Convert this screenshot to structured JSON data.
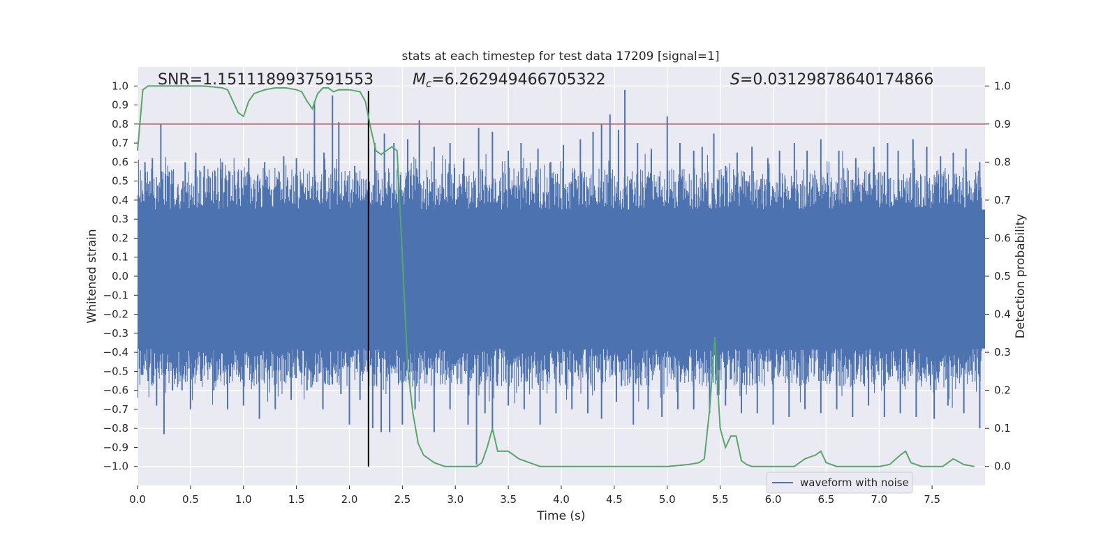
{
  "chart_data": {
    "type": "line",
    "title": "stats at each timestep for test data 17209 [signal=1]",
    "xlabel": "Time (s)",
    "ylabel_left": "Whitened strain",
    "ylabel_right": "Detection probability",
    "xlim": [
      0.0,
      8.0
    ],
    "ylim_left": [
      -1.1,
      1.1
    ],
    "ylim_right": [
      -0.05,
      1.05
    ],
    "x_ticks": [
      "0.0",
      "0.5",
      "1.0",
      "1.5",
      "2.0",
      "2.5",
      "3.0",
      "3.5",
      "4.0",
      "4.5",
      "5.0",
      "5.5",
      "6.0",
      "6.5",
      "7.0",
      "7.5"
    ],
    "x_tick_values": [
      0.0,
      0.5,
      1.0,
      1.5,
      2.0,
      2.5,
      3.0,
      3.5,
      4.0,
      4.5,
      5.0,
      5.5,
      6.0,
      6.5,
      7.0,
      7.5
    ],
    "y_left_ticks": [
      "1.0",
      "0.9",
      "0.8",
      "0.7",
      "0.6",
      "0.5",
      "0.4",
      "0.3",
      "0.2",
      "0.1",
      "0.0",
      "−0.1",
      "−0.2",
      "−0.3",
      "−0.4",
      "−0.5",
      "−0.6",
      "−0.7",
      "−0.8",
      "−0.9",
      "−1.0"
    ],
    "y_left_tick_values": [
      1.0,
      0.9,
      0.8,
      0.7,
      0.6,
      0.5,
      0.4,
      0.3,
      0.2,
      0.1,
      0.0,
      -0.1,
      -0.2,
      -0.3,
      -0.4,
      -0.5,
      -0.6,
      -0.7,
      -0.8,
      -0.9,
      -1.0
    ],
    "y_right_ticks": [
      "1.0",
      "0.9",
      "0.8",
      "0.7",
      "0.6",
      "0.5",
      "0.4",
      "0.3",
      "0.2",
      "0.1",
      "0.0"
    ],
    "y_right_tick_values": [
      1.0,
      0.9,
      0.8,
      0.7,
      0.6,
      0.5,
      0.4,
      0.3,
      0.2,
      0.1,
      0.0
    ],
    "grid": true,
    "annotations": {
      "snr": "SNR=1.1511189937591553",
      "mc_symbol": "M",
      "mc_subscript": "c",
      "mc_value": "=6.262949466705322",
      "s_symbol": "S",
      "s_value": "=0.03129878640174866"
    },
    "threshold": {
      "value": 0.9,
      "axis": "right",
      "color": "#c44e52"
    },
    "signal_marker_time": 2.18,
    "legend": {
      "label": "waveform with noise",
      "placement": "lower-right"
    },
    "waveform_envelope": {
      "name": "waveform with noise",
      "color": "#4c72b0",
      "core_upper": 0.35,
      "core_lower": -0.38,
      "peaks_upper": [
        [
          0.07,
          0.6
        ],
        [
          0.14,
          0.62
        ],
        [
          0.22,
          0.8
        ],
        [
          0.3,
          0.55
        ],
        [
          0.45,
          0.6
        ],
        [
          0.55,
          0.65
        ],
        [
          0.63,
          0.58
        ],
        [
          0.8,
          0.6
        ],
        [
          0.95,
          0.55
        ],
        [
          1.05,
          0.62
        ],
        [
          1.2,
          0.6
        ],
        [
          1.38,
          0.63
        ],
        [
          1.5,
          0.62
        ],
        [
          1.67,
          0.92
        ],
        [
          1.76,
          0.65
        ],
        [
          1.84,
          0.95
        ],
        [
          1.9,
          0.81
        ],
        [
          2.05,
          0.58
        ],
        [
          2.24,
          0.7
        ],
        [
          2.33,
          0.75
        ],
        [
          2.42,
          0.7
        ],
        [
          2.55,
          0.72
        ],
        [
          2.66,
          0.82
        ],
        [
          2.8,
          0.68
        ],
        [
          2.95,
          0.7
        ],
        [
          3.08,
          0.62
        ],
        [
          3.22,
          0.78
        ],
        [
          3.35,
          0.76
        ],
        [
          3.5,
          0.66
        ],
        [
          3.62,
          0.7
        ],
        [
          3.78,
          0.67
        ],
        [
          3.9,
          0.6
        ],
        [
          4.02,
          0.69
        ],
        [
          4.18,
          0.72
        ],
        [
          4.3,
          0.76
        ],
        [
          4.38,
          0.8
        ],
        [
          4.46,
          0.85
        ],
        [
          4.54,
          0.77
        ],
        [
          4.6,
          0.98
        ],
        [
          4.72,
          0.7
        ],
        [
          4.85,
          0.67
        ],
        [
          5.0,
          0.84
        ],
        [
          5.12,
          0.7
        ],
        [
          5.25,
          0.66
        ],
        [
          5.33,
          0.68
        ],
        [
          5.44,
          0.75
        ],
        [
          5.55,
          0.58
        ],
        [
          5.66,
          0.65
        ],
        [
          5.8,
          0.68
        ],
        [
          5.95,
          0.62
        ],
        [
          6.06,
          0.66
        ],
        [
          6.2,
          0.7
        ],
        [
          6.32,
          0.66
        ],
        [
          6.45,
          0.72
        ],
        [
          6.62,
          0.66
        ],
        [
          6.78,
          0.62
        ],
        [
          6.95,
          0.68
        ],
        [
          7.08,
          0.7
        ],
        [
          7.18,
          0.66
        ],
        [
          7.32,
          0.72
        ],
        [
          7.45,
          0.68
        ],
        [
          7.58,
          0.63
        ],
        [
          7.7,
          0.65
        ],
        [
          7.82,
          0.67
        ],
        [
          7.95,
          0.6
        ]
      ],
      "peaks_lower": [
        [
          0.1,
          -0.55
        ],
        [
          0.18,
          -0.68
        ],
        [
          0.25,
          -0.83
        ],
        [
          0.33,
          -0.6
        ],
        [
          0.42,
          -0.6
        ],
        [
          0.5,
          -0.7
        ],
        [
          0.6,
          -0.55
        ],
        [
          0.72,
          -0.6
        ],
        [
          0.85,
          -0.7
        ],
        [
          1.0,
          -0.68
        ],
        [
          1.15,
          -0.75
        ],
        [
          1.3,
          -0.7
        ],
        [
          1.45,
          -0.65
        ],
        [
          1.6,
          -0.6
        ],
        [
          1.75,
          -0.7
        ],
        [
          1.92,
          -0.62
        ],
        [
          2.0,
          -0.78
        ],
        [
          2.1,
          -0.65
        ],
        [
          2.22,
          -0.8
        ],
        [
          2.3,
          -0.82
        ],
        [
          2.38,
          -0.82
        ],
        [
          2.5,
          -0.78
        ],
        [
          2.62,
          -0.7
        ],
        [
          2.8,
          -0.82
        ],
        [
          2.95,
          -0.7
        ],
        [
          3.12,
          -0.78
        ],
        [
          3.2,
          -0.99
        ],
        [
          3.28,
          -0.72
        ],
        [
          3.35,
          -0.82
        ],
        [
          3.5,
          -0.68
        ],
        [
          3.65,
          -0.7
        ],
        [
          3.8,
          -0.78
        ],
        [
          3.95,
          -0.72
        ],
        [
          4.1,
          -0.7
        ],
        [
          4.25,
          -0.72
        ],
        [
          4.38,
          -0.75
        ],
        [
          4.52,
          -0.66
        ],
        [
          4.68,
          -0.78
        ],
        [
          4.82,
          -0.7
        ],
        [
          4.95,
          -0.74
        ],
        [
          5.1,
          -0.7
        ],
        [
          5.25,
          -0.7
        ],
        [
          5.4,
          -0.72
        ],
        [
          5.55,
          -0.68
        ],
        [
          5.7,
          -0.72
        ],
        [
          5.85,
          -0.72
        ],
        [
          6.0,
          -0.78
        ],
        [
          6.15,
          -0.74
        ],
        [
          6.3,
          -0.7
        ],
        [
          6.45,
          -0.72
        ],
        [
          6.6,
          -0.7
        ],
        [
          6.75,
          -0.74
        ],
        [
          6.9,
          -0.68
        ],
        [
          7.05,
          -0.74
        ],
        [
          7.2,
          -0.72
        ],
        [
          7.35,
          -0.74
        ],
        [
          7.52,
          -0.75
        ],
        [
          7.65,
          -0.68
        ],
        [
          7.8,
          -0.72
        ],
        [
          7.95,
          -0.8
        ]
      ]
    },
    "series": [
      {
        "name": "Detection probability",
        "axis": "right",
        "color": "#55a868",
        "x": [
          0.0,
          0.05,
          0.1,
          0.15,
          0.2,
          0.3,
          0.4,
          0.5,
          0.6,
          0.7,
          0.8,
          0.85,
          0.9,
          0.95,
          1.0,
          1.05,
          1.1,
          1.2,
          1.3,
          1.4,
          1.5,
          1.55,
          1.6,
          1.65,
          1.7,
          1.75,
          1.8,
          1.85,
          1.9,
          1.95,
          2.0,
          2.1,
          2.15,
          2.2,
          2.25,
          2.3,
          2.35,
          2.4,
          2.45,
          2.5,
          2.55,
          2.6,
          2.65,
          2.7,
          2.8,
          2.9,
          3.0,
          3.1,
          3.15,
          3.2,
          3.25,
          3.3,
          3.35,
          3.4,
          3.5,
          3.6,
          3.7,
          3.8,
          4.0,
          4.2,
          4.4,
          4.5,
          4.6,
          4.8,
          5.0,
          5.2,
          5.3,
          5.35,
          5.4,
          5.45,
          5.5,
          5.55,
          5.6,
          5.65,
          5.7,
          5.75,
          5.8,
          5.9,
          6.0,
          6.1,
          6.2,
          6.3,
          6.4,
          6.45,
          6.5,
          6.6,
          6.8,
          7.0,
          7.1,
          7.2,
          7.25,
          7.3,
          7.4,
          7.5,
          7.6,
          7.65,
          7.7,
          7.8,
          7.9
        ],
        "values": [
          0.83,
          0.99,
          1.0,
          1.0,
          1.0,
          1.0,
          1.0,
          1.0,
          1.0,
          0.998,
          0.995,
          0.99,
          0.96,
          0.93,
          0.92,
          0.96,
          0.98,
          0.99,
          0.995,
          0.995,
          0.99,
          0.985,
          0.96,
          0.94,
          0.98,
          0.995,
          0.995,
          0.985,
          0.99,
          0.99,
          0.99,
          0.985,
          0.96,
          0.89,
          0.83,
          0.82,
          0.83,
          0.84,
          0.83,
          0.55,
          0.26,
          0.14,
          0.06,
          0.03,
          0.01,
          0.0,
          0.0,
          0.0,
          0.0,
          0.0,
          0.01,
          0.05,
          0.1,
          0.04,
          0.04,
          0.02,
          0.01,
          0.0,
          0.0,
          0.0,
          0.0,
          0.0,
          0.0,
          0.0,
          0.0,
          0.005,
          0.01,
          0.02,
          0.15,
          0.34,
          0.1,
          0.05,
          0.08,
          0.08,
          0.015,
          0.005,
          0.0,
          0.0,
          0.0,
          0.0,
          0.0,
          0.02,
          0.03,
          0.04,
          0.01,
          0.0,
          0.0,
          0.0,
          0.005,
          0.03,
          0.04,
          0.01,
          0.0,
          0.0,
          0.0,
          0.01,
          0.02,
          0.005,
          0.0
        ]
      }
    ]
  }
}
